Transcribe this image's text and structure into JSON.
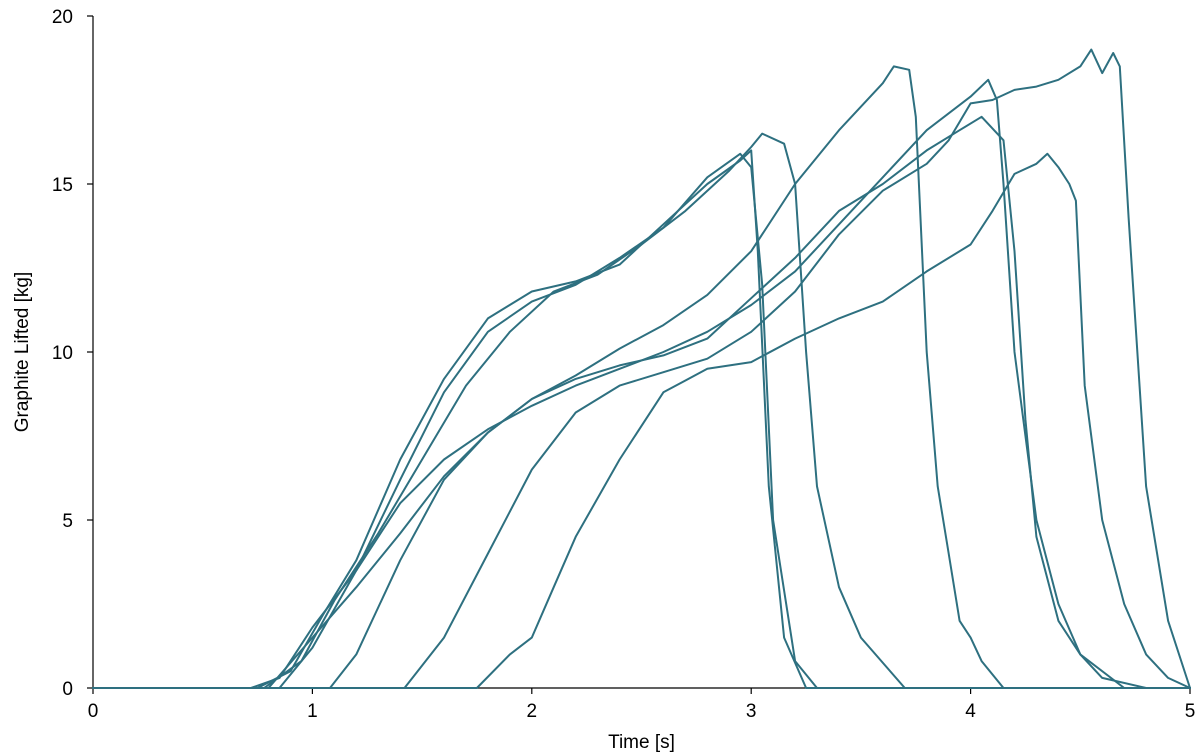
{
  "chart_data": {
    "type": "line",
    "title": "",
    "xlabel": "Time [s]",
    "ylabel": "Graphite Lifted [kg]",
    "xlim": [
      0,
      5
    ],
    "ylim": [
      0,
      20
    ],
    "xticks": [
      0,
      1,
      2,
      3,
      4,
      5
    ],
    "yticks": [
      0,
      5,
      10,
      15,
      20
    ],
    "grid": false,
    "legend": "none",
    "line_color": "#2e7080",
    "series": [
      {
        "x": [
          0,
          0.72,
          0.85,
          1.0,
          1.2,
          1.4,
          1.6,
          1.8,
          2.0,
          2.2,
          2.4,
          2.6,
          2.8,
          2.95,
          3.0,
          3.05,
          3.1,
          3.2,
          3.3,
          5.0
        ],
        "y": [
          0,
          0,
          0.3,
          1.8,
          3.5,
          6.2,
          8.8,
          10.6,
          11.5,
          12.0,
          12.8,
          13.7,
          15.2,
          15.9,
          15.5,
          12.0,
          5.0,
          0.8,
          0,
          0
        ]
      },
      {
        "x": [
          0,
          0.75,
          0.9,
          1.05,
          1.2,
          1.4,
          1.6,
          1.8,
          2.0,
          2.2,
          2.4,
          2.6,
          2.8,
          2.95,
          3.0,
          3.03,
          3.08,
          3.15,
          3.25,
          5.0
        ],
        "y": [
          0,
          0,
          0.5,
          2.2,
          3.8,
          6.8,
          9.2,
          11.0,
          11.8,
          12.1,
          12.6,
          13.8,
          15.0,
          15.7,
          16.0,
          13.0,
          6.0,
          1.5,
          0,
          0
        ]
      },
      {
        "x": [
          0,
          0.78,
          0.95,
          1.1,
          1.3,
          1.5,
          1.7,
          1.9,
          2.1,
          2.3,
          2.5,
          2.7,
          2.9,
          3.0,
          3.05,
          3.15,
          3.2,
          3.25,
          3.3,
          3.4,
          3.5,
          3.7,
          5.0
        ],
        "y": [
          0,
          0,
          0.8,
          2.6,
          4.6,
          6.8,
          9.0,
          10.6,
          11.8,
          12.3,
          13.2,
          14.2,
          15.4,
          16.1,
          16.5,
          16.2,
          15.0,
          10.0,
          6.0,
          3.0,
          1.5,
          0,
          0
        ]
      },
      {
        "x": [
          0,
          0.8,
          1.0,
          1.2,
          1.4,
          1.6,
          1.8,
          2.0,
          2.2,
          2.4,
          2.6,
          2.8,
          3.0,
          3.2,
          3.4,
          3.6,
          3.65,
          3.72,
          3.75,
          3.8,
          3.85,
          3.9,
          3.95,
          4.0,
          4.05,
          4.15,
          5.0
        ],
        "y": [
          0,
          0,
          1.5,
          3.0,
          4.6,
          6.3,
          7.6,
          8.6,
          9.3,
          10.1,
          10.8,
          11.7,
          13.0,
          15.0,
          16.6,
          18.0,
          18.5,
          18.4,
          17.0,
          10.0,
          6.0,
          4.0,
          2.0,
          1.5,
          0.8,
          0,
          0
        ]
      },
      {
        "x": [
          0,
          0.85,
          1.0,
          1.2,
          1.4,
          1.6,
          1.8,
          2.0,
          2.2,
          2.4,
          2.6,
          2.8,
          3.0,
          3.2,
          3.4,
          3.6,
          3.8,
          4.0,
          4.08,
          4.12,
          4.15,
          4.2,
          4.3,
          4.4,
          4.5,
          4.7,
          5.0
        ],
        "y": [
          0,
          0,
          1.2,
          3.5,
          5.5,
          6.8,
          7.7,
          8.4,
          9.0,
          9.5,
          10.0,
          10.6,
          11.4,
          12.4,
          13.8,
          15.2,
          16.6,
          17.6,
          18.1,
          17.5,
          15.0,
          10.0,
          5.0,
          2.5,
          1.0,
          0,
          0
        ]
      },
      {
        "x": [
          0,
          1.08,
          1.2,
          1.4,
          1.6,
          1.8,
          2.0,
          2.2,
          2.4,
          2.6,
          2.8,
          3.0,
          3.2,
          3.4,
          3.6,
          3.8,
          3.95,
          4.05,
          4.15,
          4.2,
          4.25,
          4.3,
          4.4,
          4.5,
          4.6,
          4.8,
          5.0
        ],
        "y": [
          0,
          0,
          1.0,
          3.8,
          6.2,
          7.6,
          8.6,
          9.2,
          9.6,
          9.9,
          10.4,
          11.6,
          12.8,
          14.2,
          15.0,
          16.0,
          16.6,
          17.0,
          16.3,
          13.0,
          8.0,
          4.5,
          2.0,
          1.0,
          0.3,
          0,
          0
        ]
      },
      {
        "x": [
          0,
          1.42,
          1.6,
          1.8,
          2.0,
          2.2,
          2.4,
          2.6,
          2.8,
          3.0,
          3.2,
          3.4,
          3.6,
          3.8,
          3.9,
          4.0,
          4.1,
          4.2,
          4.3,
          4.4,
          4.5,
          4.55,
          4.6,
          4.65,
          4.68,
          4.72,
          4.8,
          4.9,
          5.0
        ],
        "y": [
          0,
          0,
          1.5,
          4.0,
          6.5,
          8.2,
          9.0,
          9.4,
          9.8,
          10.6,
          11.8,
          13.5,
          14.8,
          15.6,
          16.3,
          17.4,
          17.5,
          17.8,
          17.9,
          18.1,
          18.5,
          19.0,
          18.3,
          18.9,
          18.5,
          14.0,
          6.0,
          2.0,
          0
        ]
      },
      {
        "x": [
          0,
          1.75,
          1.9,
          2.0,
          2.1,
          2.2,
          2.4,
          2.6,
          2.8,
          3.0,
          3.2,
          3.4,
          3.6,
          3.8,
          4.0,
          4.1,
          4.2,
          4.3,
          4.35,
          4.4,
          4.45,
          4.48,
          4.52,
          4.6,
          4.7,
          4.8,
          4.9,
          5.0
        ],
        "y": [
          0,
          0,
          1.0,
          1.5,
          3.0,
          4.5,
          6.8,
          8.8,
          9.5,
          9.7,
          10.4,
          11.0,
          11.5,
          12.4,
          13.2,
          14.2,
          15.3,
          15.6,
          15.9,
          15.5,
          15.0,
          14.5,
          9.0,
          5.0,
          2.5,
          1.0,
          0.3,
          0
        ]
      }
    ]
  }
}
